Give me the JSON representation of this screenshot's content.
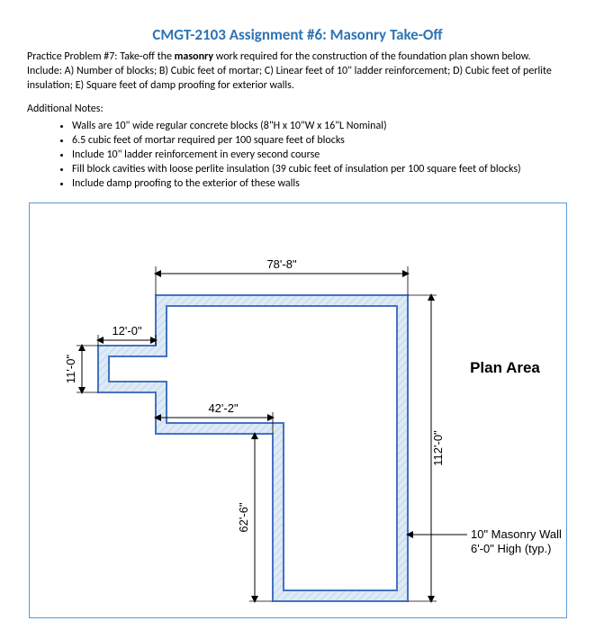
{
  "title": "CMGT-2103 Assignment #6: Masonry Take-Off",
  "intro_html": "Practice Problem #7:  Take-off the <b>masonry</b> work required for the construction of the foundation plan shown below. Include:  A) Number of blocks; B) Cubic feet of mortar; C) Linear feet of 10\" ladder reinforcement; D) Cubic feet of perlite insulation; E) Square feet of damp proofing for exterior walls.",
  "notes_header": "Additional Notes:",
  "notes": [
    "Walls are 10\" wide regular concrete blocks (8\"H x 10\"W x 16\"L Nominal)",
    "6.5 cubic feet of mortar required per 100 square feet of blocks",
    "Include 10\" ladder reinforcement in every second course",
    "Fill block cavities with loose perlite insulation (39 cubic feet of insulation per 100 square feet of blocks)",
    "Include damp proofing to the exterior of these walls"
  ],
  "plan": {
    "dims": {
      "top": "78'-8\"",
      "inner_left": "12'-0\"",
      "left_vert": "11'-0\"",
      "mid_horiz": "42'-2\"",
      "right_vert": "112'-0\"",
      "mid_vert": "62'-6\""
    },
    "label_plan_area": "Plan Area",
    "wall_note_line1": "10\" Masonry Wall",
    "wall_note_line2": "6'-0\" High (typ.)",
    "colors": {
      "outline": "#4472c4",
      "fill": "#deeaf6",
      "dim": "#000000",
      "frame": "#5b9bd5"
    }
  }
}
